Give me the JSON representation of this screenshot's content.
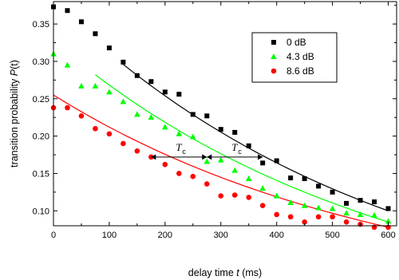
{
  "chart_data": {
    "type": "scatter",
    "xlabel": {
      "pre": "delay time ",
      "var": "t",
      "post": " (ms)"
    },
    "ylabel": {
      "pre": "transition probability ",
      "var": "P",
      "post": "(t)"
    },
    "xlim": [
      0,
      615
    ],
    "ylim": [
      0.08,
      0.38
    ],
    "xticks": [
      "0",
      "100",
      "200",
      "300",
      "400",
      "500",
      "600"
    ],
    "xtick_values": [
      0,
      100,
      200,
      300,
      400,
      500,
      600
    ],
    "yticks": [
      "0.10",
      "0.15",
      "0.20",
      "0.25",
      "0.30",
      "0.35"
    ],
    "ytick_values": [
      0.1,
      0.15,
      0.2,
      0.25,
      0.3,
      0.35
    ],
    "grid": false,
    "legend_position": "top-right",
    "series": [
      {
        "name": "0 dB",
        "marker": "square",
        "color": "#000000",
        "x": [
          0,
          25,
          50,
          75,
          100,
          125,
          150,
          175,
          200,
          225,
          250,
          275,
          300,
          325,
          350,
          375,
          400,
          425,
          450,
          475,
          500,
          525,
          550,
          575,
          600
        ],
        "y": [
          0.373,
          0.368,
          0.353,
          0.337,
          0.318,
          0.299,
          0.281,
          0.273,
          0.259,
          0.256,
          0.229,
          0.227,
          0.209,
          0.205,
          0.187,
          0.164,
          0.167,
          0.144,
          0.143,
          0.133,
          0.125,
          0.11,
          0.114,
          0.112,
          0.103
        ],
        "fit": {
          "x": [
            125,
            600
          ],
          "y": [
            0.296,
            0.1
          ]
        }
      },
      {
        "name": "4.3 dB",
        "marker": "triangle",
        "color": "#00ff00",
        "x": [
          0,
          25,
          50,
          75,
          100,
          125,
          150,
          175,
          200,
          225,
          250,
          275,
          300,
          325,
          350,
          375,
          400,
          425,
          450,
          475,
          500,
          525,
          550,
          575,
          600
        ],
        "y": [
          0.31,
          0.295,
          0.267,
          0.267,
          0.259,
          0.246,
          0.229,
          0.225,
          0.212,
          0.203,
          0.199,
          0.166,
          0.168,
          0.154,
          0.143,
          0.13,
          0.12,
          0.111,
          0.107,
          0.104,
          0.103,
          0.097,
          0.095,
          0.094,
          0.086
        ],
        "fit": {
          "x": [
            75,
            600
          ],
          "y": [
            0.282,
            0.085
          ]
        }
      },
      {
        "name": "8.6 dB",
        "marker": "circle",
        "color": "#ff0000",
        "x": [
          0,
          25,
          50,
          75,
          100,
          125,
          150,
          175,
          200,
          225,
          250,
          275,
          300,
          325,
          350,
          375,
          400,
          425,
          450,
          475,
          500,
          525,
          550,
          575,
          600
        ],
        "y": [
          0.238,
          0.238,
          0.227,
          0.21,
          0.203,
          0.19,
          0.18,
          0.172,
          0.162,
          0.15,
          0.146,
          0.136,
          0.12,
          0.121,
          0.118,
          0.107,
          0.095,
          0.092,
          0.085,
          0.092,
          0.092,
          0.085,
          0.082,
          0.078,
          0.078
        ],
        "fit": {
          "x": [
            0,
            600
          ],
          "y": [
            0.255,
            0.078
          ]
        }
      }
    ],
    "annotations": [
      {
        "label": "T",
        "sub": "c",
        "x_start": 175,
        "x_end": 275,
        "y": 0.172
      },
      {
        "label": "T",
        "sub": "c",
        "x_start": 275,
        "x_end": 375,
        "y": 0.172
      }
    ]
  }
}
